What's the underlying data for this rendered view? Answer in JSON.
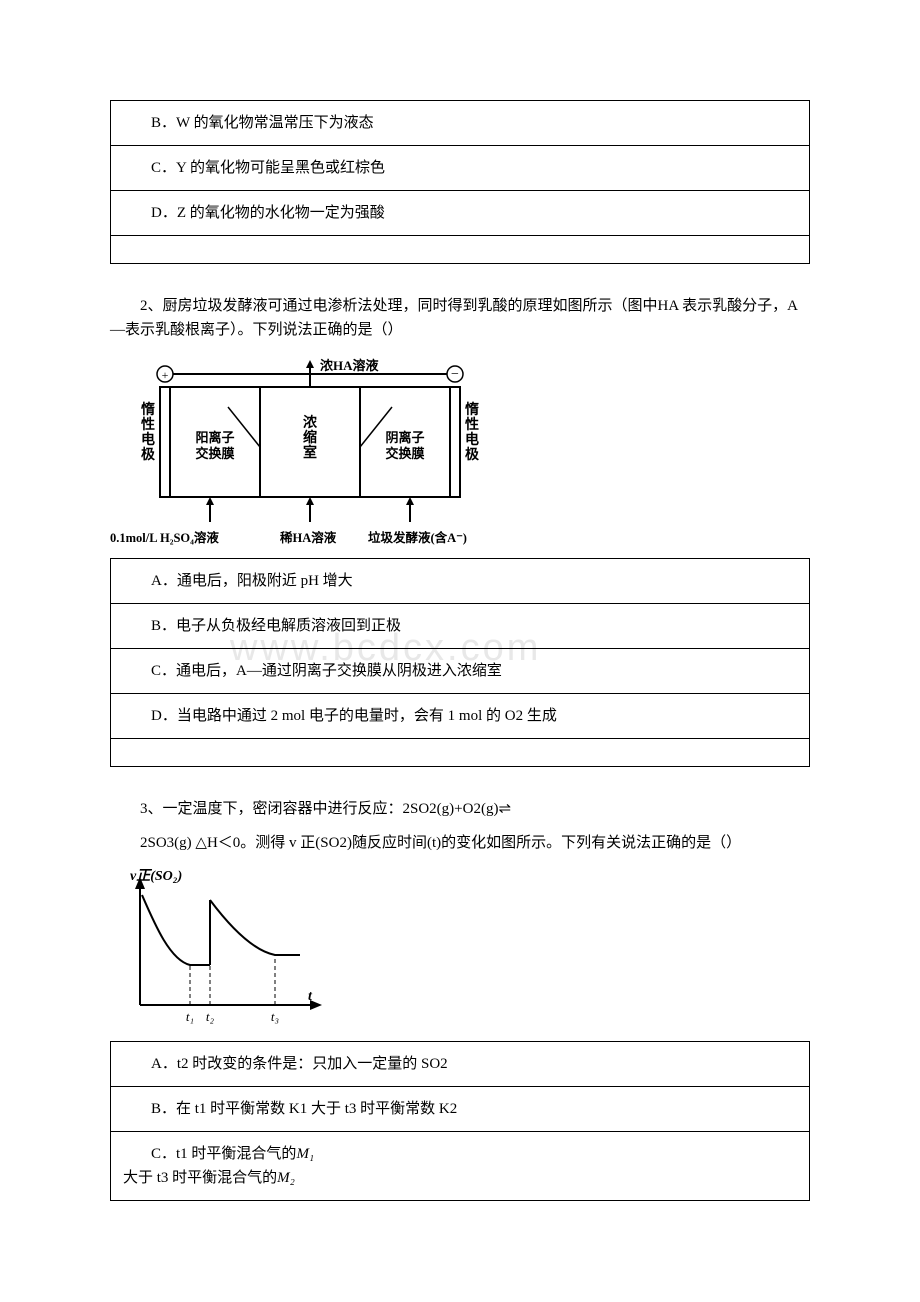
{
  "q1": {
    "optB": "B．W 的氧化物常温常压下为液态",
    "optC": "C．Y 的氧化物可能呈黑色或红棕色",
    "optD": "D．Z 的氧化物的水化物一定为强酸"
  },
  "q2": {
    "intro": "2、厨房垃圾发酵液可通过电渗析法处理，同时得到乳酸的原理如图所示（图中HA 表示乳酸分子，A—表示乳酸根离子）。下列说法正确的是（）",
    "diagram": {
      "top_arrow_label": "浓HA溶液",
      "left_electrode": "惰性电极",
      "right_electrode": "惰性电极",
      "cation_membrane": "阳离子交换膜",
      "center_label": "浓缩室",
      "anion_membrane": "阴离子交换膜",
      "plus": "⊕",
      "minus": "⊖",
      "bottom_left": "0.1mol/L H₂SO₄溶液",
      "bottom_mid": "稀HA溶液",
      "bottom_right": "垃圾发酵液(含A⁻)",
      "box_stroke": "#000000",
      "text_color": "#000000"
    },
    "optA": "A．通电后，阳极附近 pH 增大",
    "optB": "B．电子从负极经电解质溶液回到正极",
    "optC": "C．通电后，A—通过阴离子交换膜从阴极进入浓缩室",
    "optD": "D．当电路中通过 2 mol 电子的电量时，会有 1 mol 的 O2 生成"
  },
  "q3": {
    "intro1": "3、一定温度下，密闭容器中进行反应：2SO2(g)+O2(g)⇌",
    "intro2": "2SO3(g)  △H＜0。测得 v 正(SO2)随反应时间(t)的变化如图所示。下列有关说法正确的是（）",
    "chart": {
      "ylabel": "v正(SO₂)",
      "xlabel": "t",
      "ticks": [
        "t₁",
        "t₂",
        "t₃"
      ],
      "curve_color": "#000000",
      "axis_color": "#000000",
      "dash_color": "#000000"
    },
    "optA": "A．t2 时改变的条件是：只加入一定量的 SO2",
    "optB": "B．在 t1 时平衡常数 K1 大于 t3 时平衡常数 K2",
    "optC_line1": "C．t1 时平衡混合气的",
    "optC_M1": "M₁",
    "optC_line2": "大于 t3 时平衡混合气的",
    "optC_M2": "M₂"
  },
  "watermark": "www.bcdcx.com",
  "colors": {
    "text": "#000000",
    "border": "#000000",
    "watermark": "#e8e8e8",
    "background": "#ffffff"
  }
}
